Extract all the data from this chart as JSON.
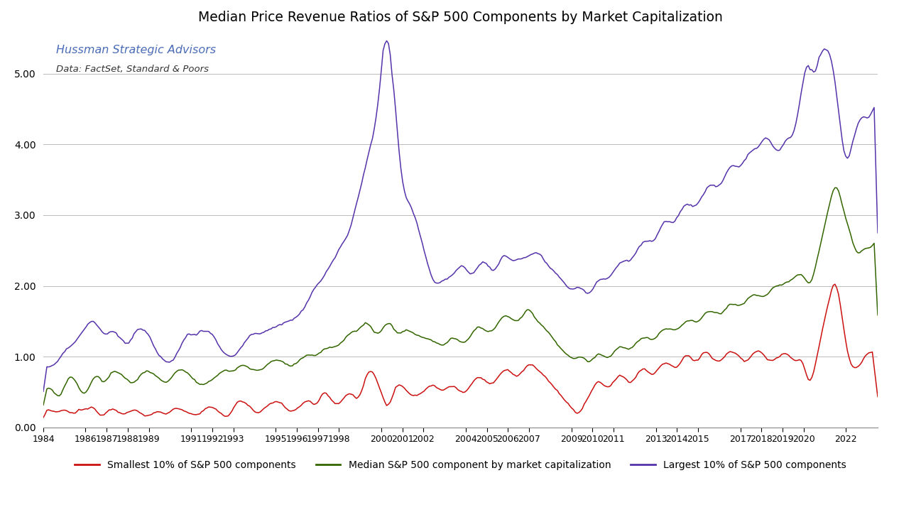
{
  "title": "Median Price Revenue Ratios of S&P 500 Components by Market Capitalization",
  "subtitle1": "Hussman Strategic Advisors",
  "subtitle2": "Data: FactSet, Standard & Poors",
  "subtitle1_color": "#4B6CB7",
  "subtitle2_color": "#333333",
  "legend_labels": [
    "Smallest 10% of S&P 500 components",
    "Median S&P 500 component by market capitalization",
    "Largest 10% of S&P 500 components"
  ],
  "line_colors": [
    "#CC1111",
    "#336600",
    "#5533AA"
  ],
  "background_color": "#FFFFFF",
  "ylim": [
    0.0,
    5.6
  ],
  "yticks": [
    0.0,
    1.0,
    2.0,
    3.0,
    4.0,
    5.0
  ],
  "grid_color": "#BBBBBB",
  "xtick_years": [
    1984,
    1986,
    1987,
    1988,
    1989,
    1991,
    1992,
    1993,
    1995,
    1996,
    1997,
    1998,
    2000,
    2001,
    2002,
    2004,
    2005,
    2006,
    2007,
    2009,
    2010,
    2011,
    2013,
    2014,
    2015,
    2017,
    2018,
    2019,
    2020,
    2022
  ],
  "xlim": [
    1984,
    2023.5
  ]
}
